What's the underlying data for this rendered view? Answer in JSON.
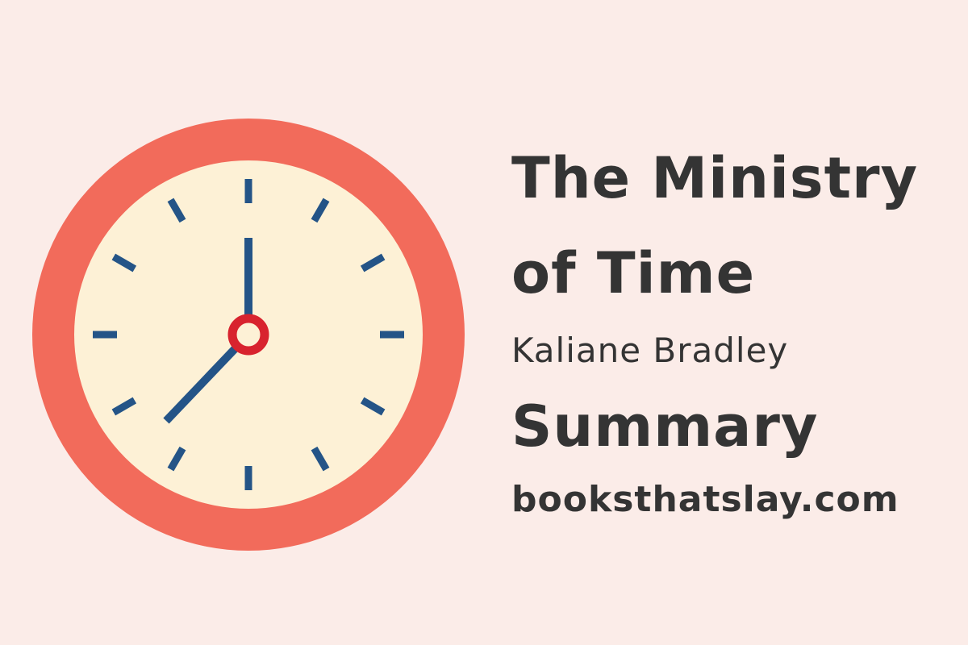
{
  "title_line1": "The Ministry",
  "title_line2": "of Time",
  "author": "Kaliane Bradley",
  "subtitle": "Summary",
  "website": "booksthatslay.com",
  "clock": {
    "icon": "clock-icon",
    "time_shown": "7:00",
    "colors": {
      "rim": "#f26b5b",
      "face": "#fdf1d6",
      "hands": "#245487",
      "center": "#d8232e"
    }
  },
  "text_color": "#343434",
  "background": "#fbece8"
}
